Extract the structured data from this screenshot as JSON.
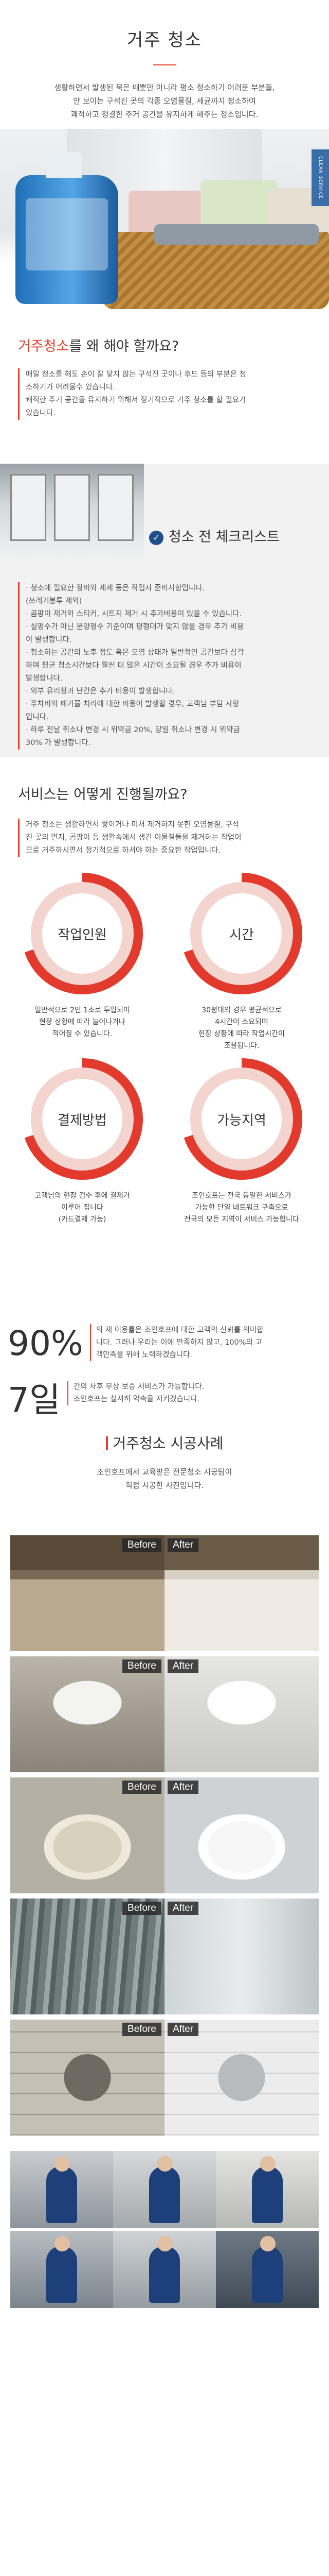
{
  "header": {
    "title": "거주 청소",
    "lines": [
      "생활하면서 발생된 묵은 때뿐만 아니라 평소 청소하기 어려운 부분들,",
      "안 보이는 구석진 곳의 각종 오염물질, 세균까지 청소하여",
      "쾌적하고 청결한 주거 공간을 유지하게 해주는 청소입니다."
    ]
  },
  "hero": {
    "side_tab": "CLEAN SERVICE"
  },
  "why": {
    "title_accent": "거주청소",
    "title_rest": "를 왜 해야 할까요?",
    "lines": [
      "매일 청소를 해도 손이 잘 닿지 않는 구석진 곳이나 후드 등의 부분은 청",
      "소하기가 어려울수 있습니다.",
      "쾌적한 주거 공간을 유지하기 위해서 정기적으로 거주 청소를 할 필요가",
      "있습니다."
    ]
  },
  "checklist": {
    "icon": "check-circle-icon",
    "title": "청소 전 체크리스트",
    "items": [
      "· 청소에 필요한 장비와 세제 등은 작업자 준비사항입니다.",
      "  (쓰레기봉투 제외)",
      "· 곰팡이 제거와 스티커, 시트지 제거 시 추가비용이 있을 수 있습니다.",
      "· 실평수가 아닌 분양평수 기준이며 평형대가 맞지 않을 경우 추가 비용",
      "  이 발생합니다.",
      "· 청소하는 공간의 노후 정도 혹은 오염 상태가 일반적인 공간보다 심각",
      "  하여 평균 청소시간보다 훨씬 더 많은 시간이 소요될 경우 추가 비용이",
      "  발생합니다.",
      "· 외부 유리창과 난간은 추가 비용이 발생합니다.",
      "· 주차비와 폐기물 처리에 대한 비용이 발생할 경우, 고객님 부담 사항",
      "  입니다.",
      "· 하루 전날 취소나 변경 시 위약금 20%, 당일 취소나 변경 시 위약금",
      "  30% 가 발생합니다."
    ]
  },
  "how": {
    "title": "서비스는 어떻게 진행될까요?",
    "intro": [
      "거주 청소는 생활하면서 쌓이거나 미처 제거하지 못한 오염물질, 구석",
      "진 곳의 먼지, 곰팡이 등 생활속에서 생긴 이물질들을 제거하는 작업이",
      "므로 거주하시면서 정기적으로 하셔야 하는 중요한 작업입니다."
    ],
    "circles": [
      {
        "label": "작업인원",
        "lines": [
          "일반적으로 2인 1조로 투입되며",
          "현장 상황에 따라 늘어나거나",
          "적어질 수 있습니다."
        ]
      },
      {
        "label": "시간",
        "lines": [
          "30평대의 경우 평균적으로",
          "4시간이 소요되며",
          "현장 상황에 따라 작업시간이",
          "조율됩니다."
        ]
      },
      {
        "label": "결제방법",
        "lines": [
          "고객님의 현장 검수 후에 결제가",
          "이루어 집니다",
          "(카드결제 가능)"
        ]
      },
      {
        "label": "가능지역",
        "lines": [
          "조인호프는 전국 동일한 서비스가",
          "가능한 단일 네트워크 구축으로",
          "전국의 모든 지역이 서비스 가능합니다"
        ]
      }
    ],
    "stats": [
      {
        "num": "90%",
        "lines": [
          "의 재 이용률은 조인호프에 대한 고객의 신뢰를 의미합",
          "니다. 그러나 우리는 이에 만족하지 않고, 100%의 고",
          "객만족을 위해 노력하겠습니다."
        ]
      },
      {
        "num": "7일",
        "lines": [
          "간의 사후 무상 보증 서비스가 가능합니다.",
          "조인호프는 철저히 약속을 지키겠습니다."
        ]
      }
    ]
  },
  "cases": {
    "title": "거주청소 시공사례",
    "sub": [
      "조인호프에서 교육받은 전문청소 시공팀이",
      "직접 시공한 사진입니다."
    ],
    "before_label": "Before",
    "after_label": "After"
  },
  "colors": {
    "accent": "#e8402a",
    "ring": "#e23b2e",
    "navy": "#1d4f8c"
  }
}
